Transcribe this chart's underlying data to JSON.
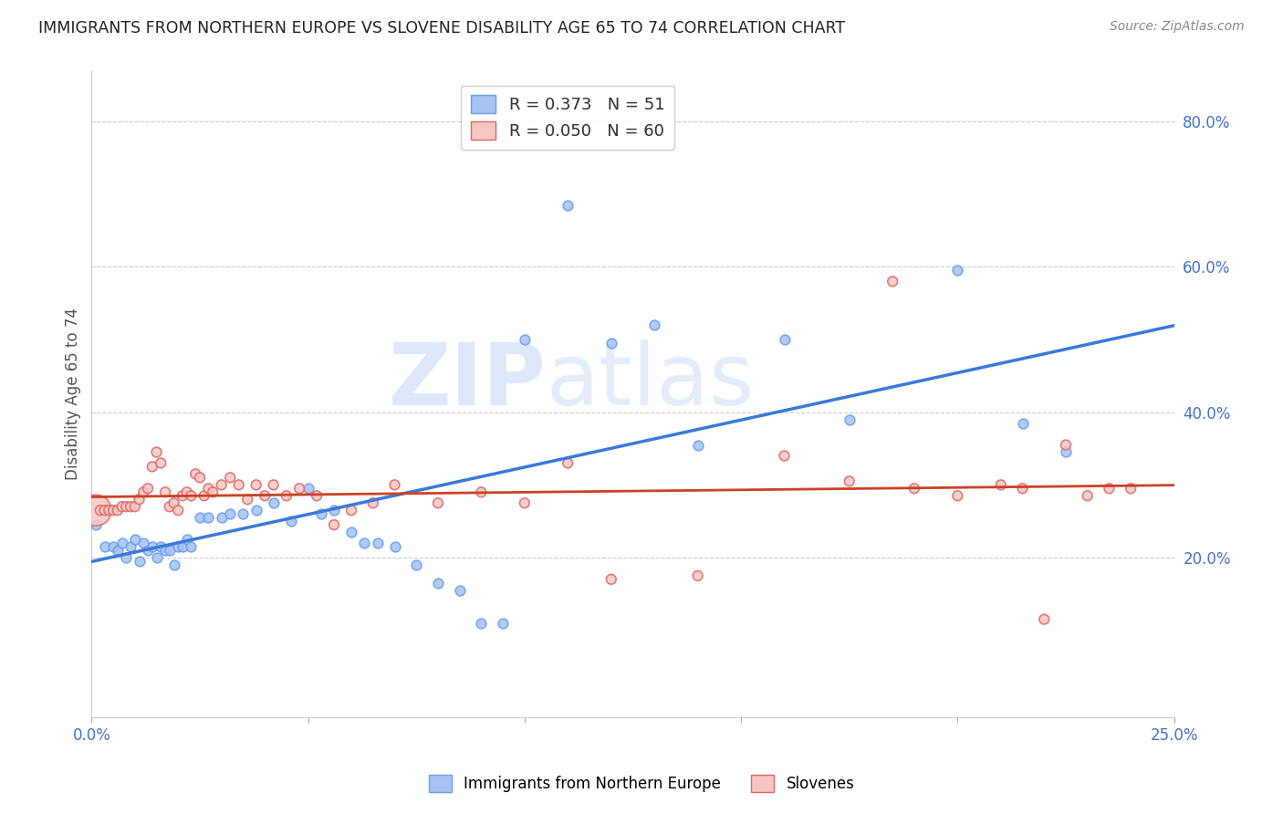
{
  "title": "IMMIGRANTS FROM NORTHERN EUROPE VS SLOVENE DISABILITY AGE 65 TO 74 CORRELATION CHART",
  "source": "Source: ZipAtlas.com",
  "ylabel": "Disability Age 65 to 74",
  "right_yticks": [
    "20.0%",
    "40.0%",
    "60.0%",
    "80.0%"
  ],
  "right_ytick_vals": [
    0.2,
    0.4,
    0.6,
    0.8
  ],
  "legend_label1": "Immigrants from Northern Europe",
  "legend_label2": "Slovenes",
  "blue_color": "#a4c2f4",
  "pink_color": "#f4c7c3",
  "blue_edge_color": "#6d9eeb",
  "pink_edge_color": "#e06666",
  "blue_line_color": "#3c78d8",
  "pink_line_color": "#cc4125",
  "R_blue": 0.373,
  "N_blue": 51,
  "R_pink": 0.05,
  "N_pink": 60,
  "xlim": [
    0.0,
    0.25
  ],
  "ylim": [
    -0.02,
    0.87
  ],
  "blue_scatter_x": [
    0.001,
    0.003,
    0.005,
    0.006,
    0.007,
    0.008,
    0.009,
    0.01,
    0.011,
    0.012,
    0.013,
    0.014,
    0.015,
    0.016,
    0.017,
    0.018,
    0.019,
    0.02,
    0.021,
    0.022,
    0.023,
    0.025,
    0.027,
    0.03,
    0.032,
    0.035,
    0.038,
    0.042,
    0.046,
    0.05,
    0.053,
    0.056,
    0.06,
    0.063,
    0.066,
    0.07,
    0.075,
    0.08,
    0.085,
    0.09,
    0.095,
    0.1,
    0.11,
    0.12,
    0.13,
    0.14,
    0.16,
    0.175,
    0.2,
    0.215,
    0.225
  ],
  "blue_scatter_y": [
    0.245,
    0.215,
    0.215,
    0.21,
    0.22,
    0.2,
    0.215,
    0.225,
    0.195,
    0.22,
    0.21,
    0.215,
    0.2,
    0.215,
    0.21,
    0.21,
    0.19,
    0.215,
    0.215,
    0.225,
    0.215,
    0.255,
    0.255,
    0.255,
    0.26,
    0.26,
    0.265,
    0.275,
    0.25,
    0.295,
    0.26,
    0.265,
    0.235,
    0.22,
    0.22,
    0.215,
    0.19,
    0.165,
    0.155,
    0.11,
    0.11,
    0.5,
    0.685,
    0.495,
    0.52,
    0.355,
    0.5,
    0.39,
    0.595,
    0.385,
    0.345
  ],
  "pink_scatter_x": [
    0.001,
    0.002,
    0.003,
    0.004,
    0.005,
    0.006,
    0.007,
    0.008,
    0.009,
    0.01,
    0.011,
    0.012,
    0.013,
    0.014,
    0.015,
    0.016,
    0.017,
    0.018,
    0.019,
    0.02,
    0.021,
    0.022,
    0.023,
    0.024,
    0.025,
    0.026,
    0.027,
    0.028,
    0.03,
    0.032,
    0.034,
    0.036,
    0.038,
    0.04,
    0.042,
    0.045,
    0.048,
    0.052,
    0.056,
    0.06,
    0.065,
    0.07,
    0.08,
    0.09,
    0.1,
    0.11,
    0.12,
    0.14,
    0.16,
    0.175,
    0.185,
    0.19,
    0.2,
    0.21,
    0.215,
    0.22,
    0.225,
    0.23,
    0.235,
    0.24
  ],
  "pink_scatter_y": [
    0.265,
    0.265,
    0.265,
    0.265,
    0.265,
    0.265,
    0.27,
    0.27,
    0.27,
    0.27,
    0.28,
    0.29,
    0.295,
    0.325,
    0.345,
    0.33,
    0.29,
    0.27,
    0.275,
    0.265,
    0.285,
    0.29,
    0.285,
    0.315,
    0.31,
    0.285,
    0.295,
    0.29,
    0.3,
    0.31,
    0.3,
    0.28,
    0.3,
    0.285,
    0.3,
    0.285,
    0.295,
    0.285,
    0.245,
    0.265,
    0.275,
    0.3,
    0.275,
    0.29,
    0.275,
    0.33,
    0.17,
    0.175,
    0.34,
    0.305,
    0.58,
    0.295,
    0.285,
    0.3,
    0.295,
    0.115,
    0.355,
    0.285,
    0.295,
    0.295
  ],
  "pink_large_idx": 0,
  "pink_large_size": 600,
  "dot_size": 60,
  "watermark_zip": "ZIP",
  "watermark_atlas": "atlas",
  "background_color": "#ffffff"
}
